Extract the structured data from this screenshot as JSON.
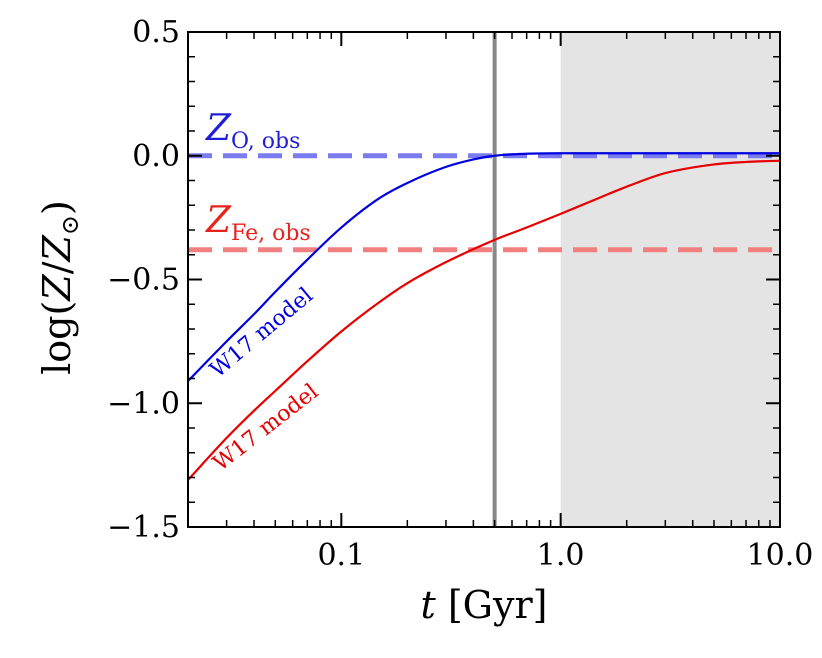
{
  "chart_data": {
    "type": "line",
    "xscale": "log",
    "xlim": [
      0.02,
      10.0
    ],
    "ylim": [
      -1.5,
      0.5
    ],
    "xlabel": {
      "italic": "t",
      "rest": "[Gyr]"
    },
    "ylabel": {
      "prefix": "log(",
      "num": "Z",
      "slash": "/",
      "den": "Z",
      "sun": "⊙",
      "suffix": ")"
    },
    "xticks": [
      {
        "value": 0.1,
        "label": "0.1"
      },
      {
        "value": 1.0,
        "label": "1.0"
      },
      {
        "value": 10.0,
        "label": "10.0"
      }
    ],
    "yticks": [
      {
        "value": 0.5,
        "label": "0.5"
      },
      {
        "value": 0.0,
        "label": "0.0"
      },
      {
        "value": -0.5,
        "label": "−0.5"
      },
      {
        "value": -1.0,
        "label": "−1.0"
      },
      {
        "value": -1.5,
        "label": "−1.5"
      }
    ],
    "shaded_region": {
      "x_from": 1.0,
      "x_to": 10.0,
      "color": "#e4e4e4"
    },
    "vertical_line": {
      "x": 0.5,
      "color": "#888888"
    },
    "hlines": [
      {
        "y": 0.0,
        "color": "#7b7bf0",
        "style": "dashed",
        "label_main": "Z",
        "label_sub": "O, obs",
        "label_color": "#1f1fd8"
      },
      {
        "y": -0.38,
        "color": "#f08080",
        "style": "dashed",
        "label_main": "Z",
        "label_sub": "Fe, obs",
        "label_color": "#e8231e"
      }
    ],
    "series": [
      {
        "label": "W17 model",
        "color": "#0000e0",
        "x": [
          0.02,
          0.03,
          0.04,
          0.05,
          0.07,
          0.1,
          0.15,
          0.2,
          0.3,
          0.4,
          0.5,
          0.7,
          1.0,
          2.0,
          5.0,
          10.0
        ],
        "y": [
          -0.91,
          -0.75,
          -0.64,
          -0.55,
          -0.42,
          -0.29,
          -0.17,
          -0.11,
          -0.045,
          -0.015,
          0.0,
          0.008,
          0.01,
          0.01,
          0.01,
          0.01
        ]
      },
      {
        "label": "W17 model",
        "color": "#e80000",
        "x": [
          0.02,
          0.03,
          0.04,
          0.05,
          0.07,
          0.1,
          0.15,
          0.2,
          0.3,
          0.5,
          0.7,
          1.0,
          1.5,
          2.0,
          3.0,
          5.0,
          7.0,
          10.0
        ],
        "y": [
          -1.31,
          -1.14,
          -1.03,
          -0.95,
          -0.83,
          -0.71,
          -0.59,
          -0.515,
          -0.43,
          -0.34,
          -0.29,
          -0.235,
          -0.17,
          -0.125,
          -0.07,
          -0.035,
          -0.025,
          -0.02
        ]
      }
    ]
  }
}
